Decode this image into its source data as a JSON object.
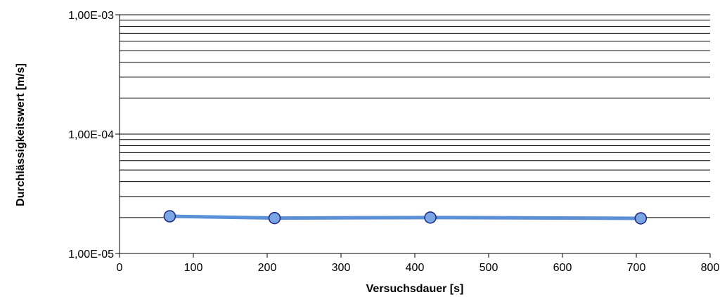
{
  "chart_data": {
    "type": "line",
    "xlabel": "Versuchsdauer [s]",
    "ylabel": "Durchlässigkeitswert [m/s]",
    "xlim": [
      0,
      800
    ],
    "ylim": [
      1e-05,
      0.001
    ],
    "y_scale": "log",
    "x_ticks": [
      0,
      100,
      200,
      300,
      400,
      500,
      600,
      700,
      800
    ],
    "y_tick_labels": [
      "1,00E-05",
      "1,00E-04",
      "1,00E-03"
    ],
    "y_tick_values": [
      1e-05,
      0.0001,
      0.001
    ],
    "grid": "horizontal major and minor",
    "series": [
      {
        "x": [
          68,
          210,
          421,
          706
        ],
        "y": [
          2.05e-05,
          1.98e-05,
          2e-05,
          1.97e-05
        ],
        "line_color": "#5b8fd6",
        "marker_fill": "#7aa6e6",
        "marker_edge": "#1a237e"
      }
    ]
  }
}
